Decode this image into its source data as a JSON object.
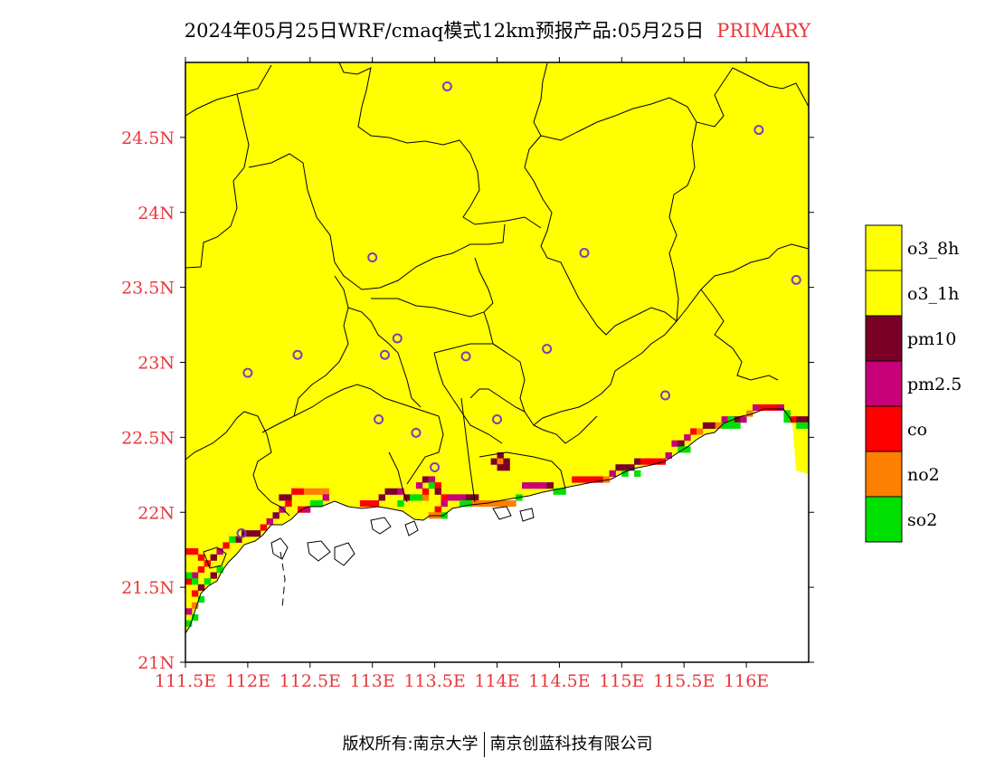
{
  "title": {
    "main": "2024年05月25日WRF/cmaq模式12km预报产品:05月25日",
    "tag": "PRIMARY"
  },
  "colors": {
    "land": "#ffff00",
    "sea": "#ffffff",
    "axis_label": "#e8383d",
    "station": "#7b3fb8",
    "o3_8h": "#ffff00",
    "o3_1h": "#ffff00",
    "pm10": "#7a0028",
    "pm2_5": "#c80078",
    "co": "#ff0000",
    "no2": "#ff7f00",
    "so2": "#00e000"
  },
  "axes": {
    "lon_range": [
      111.5,
      116.5
    ],
    "lat_range": [
      21.0,
      25.0
    ],
    "x_ticks": [
      {
        "value": 111.5,
        "label": "111.5E"
      },
      {
        "value": 112.0,
        "label": "112E"
      },
      {
        "value": 112.5,
        "label": "112.5E"
      },
      {
        "value": 113.0,
        "label": "113E"
      },
      {
        "value": 113.5,
        "label": "113.5E"
      },
      {
        "value": 114.0,
        "label": "114E"
      },
      {
        "value": 114.5,
        "label": "114.5E"
      },
      {
        "value": 115.0,
        "label": "115E"
      },
      {
        "value": 115.5,
        "label": "115.5E"
      },
      {
        "value": 116.0,
        "label": "116E"
      }
    ],
    "y_ticks": [
      {
        "value": 21.0,
        "label": "21N"
      },
      {
        "value": 21.5,
        "label": "21.5N"
      },
      {
        "value": 22.0,
        "label": "22N"
      },
      {
        "value": 22.5,
        "label": "22.5N"
      },
      {
        "value": 23.0,
        "label": "23N"
      },
      {
        "value": 23.5,
        "label": "23.5N"
      },
      {
        "value": 24.0,
        "label": "24N"
      },
      {
        "value": 24.5,
        "label": "24.5N"
      }
    ]
  },
  "legend": [
    {
      "label": "o3_8h",
      "color": "#ffff00"
    },
    {
      "label": "o3_1h",
      "color": "#ffff00"
    },
    {
      "label": "pm10",
      "color": "#7a0028"
    },
    {
      "label": "pm2.5",
      "color": "#c80078"
    },
    {
      "label": "co",
      "color": "#ff0000"
    },
    {
      "label": "no2",
      "color": "#ff7f00"
    },
    {
      "label": "so2",
      "color": "#00e000"
    }
  ],
  "stations": [
    [
      113.6,
      24.84
    ],
    [
      116.1,
      24.55
    ],
    [
      113.0,
      23.7
    ],
    [
      114.7,
      23.73
    ],
    [
      116.4,
      23.55
    ],
    [
      113.2,
      23.16
    ],
    [
      112.4,
      23.05
    ],
    [
      113.1,
      23.05
    ],
    [
      113.75,
      23.04
    ],
    [
      114.4,
      23.09
    ],
    [
      112.0,
      22.93
    ],
    [
      115.35,
      22.78
    ],
    [
      113.05,
      22.62
    ],
    [
      113.35,
      22.53
    ],
    [
      114.0,
      22.62
    ],
    [
      113.5,
      22.3
    ],
    [
      111.95,
      21.86
    ]
  ],
  "coast_cells": [
    [
      22.08,
      112.25,
      "pm10"
    ],
    [
      22.08,
      112.3,
      "pm10"
    ],
    [
      22.12,
      112.35,
      "co"
    ],
    [
      22.12,
      112.4,
      "co"
    ],
    [
      22.12,
      112.45,
      "no2"
    ],
    [
      22.12,
      112.5,
      "no2"
    ],
    [
      22.12,
      112.55,
      "no2"
    ],
    [
      22.12,
      112.6,
      "no2"
    ],
    [
      22.08,
      112.6,
      "pm2.5"
    ],
    [
      22.04,
      112.55,
      "so2"
    ],
    [
      22.04,
      112.5,
      "so2"
    ],
    [
      22.0,
      112.45,
      "pm2.5"
    ],
    [
      22.0,
      112.4,
      "co"
    ],
    [
      22.04,
      112.3,
      "co"
    ],
    [
      22.0,
      112.25,
      "pm2.5"
    ],
    [
      21.96,
      112.2,
      "pm10"
    ],
    [
      21.92,
      112.15,
      "pm2.5"
    ],
    [
      21.88,
      112.1,
      "co"
    ],
    [
      21.84,
      112.05,
      "pm10"
    ],
    [
      21.84,
      112.0,
      "pm10"
    ],
    [
      21.84,
      111.95,
      "pm10"
    ],
    [
      21.8,
      111.9,
      "pm10"
    ],
    [
      21.8,
      111.85,
      "so2"
    ],
    [
      21.76,
      111.8,
      "co"
    ],
    [
      21.72,
      111.75,
      "pm2.5"
    ],
    [
      21.68,
      111.7,
      "pm10"
    ],
    [
      21.64,
      111.65,
      "co"
    ],
    [
      21.6,
      111.6,
      "co"
    ],
    [
      21.56,
      111.55,
      "pm2.5"
    ],
    [
      21.52,
      111.5,
      "co"
    ],
    [
      21.52,
      111.55,
      "so2"
    ],
    [
      21.48,
      111.6,
      "pm10"
    ],
    [
      21.44,
      111.55,
      "co"
    ],
    [
      21.4,
      111.6,
      "so2"
    ],
    [
      21.36,
      111.55,
      "no2"
    ],
    [
      21.32,
      111.5,
      "pm2.5"
    ],
    [
      21.28,
      111.55,
      "so2"
    ],
    [
      21.24,
      111.5,
      "so2"
    ],
    [
      21.72,
      111.5,
      "co"
    ],
    [
      21.72,
      111.55,
      "co"
    ],
    [
      21.68,
      111.6,
      "co"
    ],
    [
      21.56,
      111.5,
      "so2"
    ],
    [
      21.6,
      111.75,
      "so2"
    ],
    [
      21.56,
      111.7,
      "pm10"
    ],
    [
      21.52,
      111.65,
      "so2"
    ],
    [
      22.04,
      112.9,
      "co"
    ],
    [
      22.04,
      112.95,
      "co"
    ],
    [
      22.04,
      113.0,
      "co"
    ],
    [
      22.08,
      113.05,
      "pm10"
    ],
    [
      22.12,
      113.1,
      "pm10"
    ],
    [
      22.12,
      113.15,
      "pm10"
    ],
    [
      22.12,
      113.2,
      "pm2.5"
    ],
    [
      22.08,
      113.25,
      "pm10"
    ],
    [
      22.04,
      113.2,
      "so2"
    ],
    [
      22.08,
      113.3,
      "so2"
    ],
    [
      22.08,
      113.35,
      "so2"
    ],
    [
      22.08,
      113.4,
      "no2"
    ],
    [
      22.12,
      113.4,
      "co"
    ],
    [
      22.16,
      113.35,
      "pm2.5"
    ],
    [
      22.2,
      113.4,
      "pm10"
    ],
    [
      22.2,
      113.45,
      "pm2.5"
    ],
    [
      22.16,
      113.45,
      "so2"
    ],
    [
      22.16,
      113.5,
      "co"
    ],
    [
      22.12,
      113.5,
      "pm10"
    ],
    [
      22.08,
      113.55,
      "co"
    ],
    [
      22.04,
      113.55,
      "pm2.5"
    ],
    [
      22.0,
      113.5,
      "co"
    ],
    [
      21.96,
      113.45,
      "no2"
    ],
    [
      21.96,
      113.5,
      "no2"
    ],
    [
      21.96,
      113.55,
      "so2"
    ],
    [
      22.08,
      113.6,
      "pm2.5"
    ],
    [
      22.08,
      113.65,
      "pm2.5"
    ],
    [
      22.08,
      113.7,
      "pm2.5"
    ],
    [
      22.08,
      113.75,
      "pm10"
    ],
    [
      22.08,
      113.8,
      "pm10"
    ],
    [
      22.04,
      113.7,
      "so2"
    ],
    [
      22.04,
      113.75,
      "so2"
    ],
    [
      22.04,
      113.8,
      "no2"
    ],
    [
      22.04,
      113.85,
      "no2"
    ],
    [
      22.04,
      113.9,
      "no2"
    ],
    [
      22.04,
      113.95,
      "no2"
    ],
    [
      22.04,
      114.0,
      "no2"
    ],
    [
      22.04,
      114.05,
      "no2"
    ],
    [
      22.04,
      114.1,
      "no2"
    ],
    [
      22.08,
      114.15,
      "so2"
    ],
    [
      22.16,
      114.2,
      "pm2.5"
    ],
    [
      22.16,
      114.25,
      "pm2.5"
    ],
    [
      22.16,
      114.3,
      "pm2.5"
    ],
    [
      22.16,
      114.35,
      "pm2.5"
    ],
    [
      22.16,
      114.4,
      "pm10"
    ],
    [
      22.12,
      114.45,
      "so2"
    ],
    [
      22.12,
      114.5,
      "so2"
    ],
    [
      22.2,
      114.6,
      "co"
    ],
    [
      22.2,
      114.65,
      "co"
    ],
    [
      22.2,
      114.7,
      "co"
    ],
    [
      22.2,
      114.75,
      "co"
    ],
    [
      22.2,
      114.8,
      "co"
    ],
    [
      22.2,
      114.85,
      "no2"
    ],
    [
      22.24,
      114.9,
      "pm2.5"
    ],
    [
      22.28,
      114.95,
      "pm10"
    ],
    [
      22.28,
      115.0,
      "pm10"
    ],
    [
      22.28,
      115.05,
      "pm10"
    ],
    [
      22.24,
      115.0,
      "so2"
    ],
    [
      22.24,
      115.1,
      "so2"
    ],
    [
      22.32,
      115.1,
      "pm10"
    ],
    [
      22.32,
      115.15,
      "co"
    ],
    [
      22.32,
      115.2,
      "co"
    ],
    [
      22.32,
      115.25,
      "co"
    ],
    [
      22.32,
      115.3,
      "co"
    ],
    [
      22.36,
      115.35,
      "pm2.5"
    ],
    [
      22.44,
      115.4,
      "pm2.5"
    ],
    [
      22.44,
      115.45,
      "pm10"
    ],
    [
      22.4,
      115.45,
      "so2"
    ],
    [
      22.4,
      115.5,
      "so2"
    ],
    [
      22.48,
      115.5,
      "pm2.5"
    ],
    [
      22.52,
      115.55,
      "co"
    ],
    [
      22.52,
      115.6,
      "no2"
    ],
    [
      22.56,
      115.65,
      "pm10"
    ],
    [
      22.56,
      115.7,
      "pm10"
    ],
    [
      22.56,
      115.75,
      "no2"
    ],
    [
      22.6,
      115.8,
      "pm2.5"
    ],
    [
      22.6,
      115.85,
      "pm2.5"
    ],
    [
      22.6,
      115.9,
      "pm10"
    ],
    [
      22.6,
      115.95,
      "pm2.5"
    ],
    [
      22.64,
      116.0,
      "no2"
    ],
    [
      22.68,
      116.05,
      "pm2.5"
    ],
    [
      22.68,
      116.1,
      "co"
    ],
    [
      22.68,
      116.15,
      "co"
    ],
    [
      22.68,
      116.2,
      "co"
    ],
    [
      22.68,
      116.25,
      "pm2.5"
    ],
    [
      22.64,
      116.3,
      "pm2.5"
    ],
    [
      22.6,
      116.35,
      "co"
    ],
    [
      22.6,
      116.4,
      "pm10"
    ],
    [
      22.6,
      116.45,
      "pm10"
    ],
    [
      22.56,
      116.4,
      "so2"
    ],
    [
      22.56,
      116.45,
      "so2"
    ],
    [
      22.6,
      115.85,
      "so2"
    ],
    [
      22.56,
      115.8,
      "so2"
    ],
    [
      22.56,
      115.85,
      "so2"
    ],
    [
      22.56,
      115.9,
      "so2"
    ],
    [
      22.64,
      116.3,
      "so2"
    ],
    [
      22.6,
      116.3,
      "so2"
    ],
    [
      22.36,
      114.0,
      "pm10"
    ],
    [
      22.32,
      113.95,
      "pm10"
    ],
    [
      22.32,
      114.0,
      "no2"
    ],
    [
      22.32,
      114.05,
      "pm10"
    ],
    [
      22.28,
      114.0,
      "pm10"
    ],
    [
      22.28,
      114.05,
      "pm10"
    ]
  ],
  "footer": {
    "left": "版权所有:南京大学",
    "right": "南京创蓝科技有限公司"
  }
}
